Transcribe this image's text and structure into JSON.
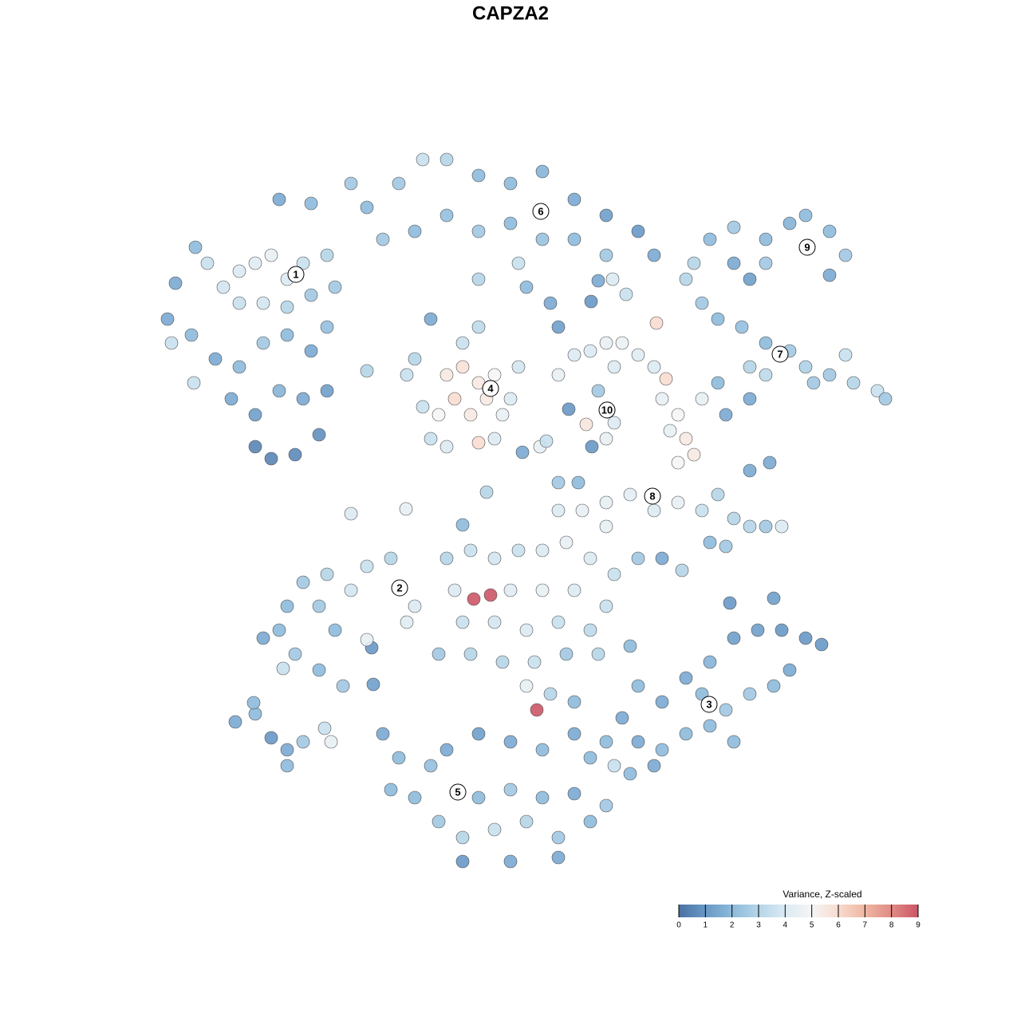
{
  "chart_data": {
    "type": "scatter",
    "title": "CAPZA2",
    "xlim": [
      0,
      1280
    ],
    "ylim": [
      1280,
      0
    ],
    "x": [
      210,
      220,
      245,
      260,
      280,
      300,
      320,
      340,
      360,
      380,
      300,
      330,
      360,
      390,
      410,
      420,
      240,
      270,
      300,
      330,
      360,
      390,
      410,
      290,
      320,
      350,
      380,
      410,
      320,
      340,
      370,
      400,
      350,
      390,
      440,
      215,
      243,
      460,
      460,
      500,
      530,
      560,
      600,
      640,
      680,
      720,
      760,
      800,
      820,
      480,
      520,
      560,
      600,
      640,
      680,
      720,
      760,
      600,
      650,
      690,
      700,
      540,
      660,
      510,
      530,
      540,
      560,
      580,
      600,
      620,
      570,
      590,
      610,
      630,
      550,
      560,
      600,
      620,
      640,
      650,
      520,
      580,
      600,
      740,
      760,
      780,
      800,
      820,
      770,
      750,
      770,
      760,
      735,
      823,
      700,
      720,
      870,
      890,
      920,
      960,
      990,
      1010,
      1040,
      1060,
      1040,
      960,
      920,
      940,
      860,
      880,
      900,
      930,
      960,
      990,
      1010,
      1040,
      1070,
      1100,
      1110,
      1020,
      1060,
      940,
      900,
      910,
      940,
      960,
      830,
      850,
      860,
      870,
      850,
      840,
      835,
      880,
      700,
      730,
      760,
      790,
      820,
      850,
      880,
      900,
      920,
      940,
      960,
      980,
      890,
      910,
      940,
      965,
      760,
      440,
      509,
      580,
      610,
      655,
      677,
      685,
      700,
      725,
      742,
      713,
      741,
      785,
      768,
      750,
      330,
      350,
      360,
      380,
      410,
      440,
      460,
      490,
      500,
      520,
      510,
      400,
      420,
      370,
      400,
      430,
      355,
      466,
      468,
      460,
      560,
      590,
      620,
      650,
      680,
      710,
      740,
      770,
      800,
      830,
      855,
      570,
      640,
      680,
      720,
      760,
      580,
      620,
      660,
      700,
      740,
      550,
      590,
      630,
      670,
      710,
      750,
      790,
      660,
      690,
      720,
      594,
      615,
      673,
      800,
      830,
      860,
      890,
      920,
      950,
      980,
      1010,
      1030,
      970,
      915,
      880,
      910,
      940,
      970,
      990,
      780,
      800,
      830,
      860,
      890,
      920,
      790,
      820,
      770,
      760,
      480,
      500,
      490,
      520,
      540,
      560,
      600,
      640,
      680,
      720,
      740,
      550,
      580,
      620,
      660,
      700,
      740,
      760,
      600,
      640,
      680,
      580,
      640,
      700,
      720,
      295,
      320,
      340,
      360,
      380,
      360,
      407,
      415,
      318
    ],
    "y": [
      400,
      355,
      310,
      330,
      360,
      340,
      330,
      320,
      350,
      330,
      380,
      380,
      385,
      370,
      320,
      360,
      420,
      450,
      460,
      430,
      420,
      440,
      410,
      500,
      520,
      490,
      500,
      490,
      560,
      575,
      570,
      545,
      250,
      255,
      230,
      430,
      480,
      465,
      260,
      230,
      200,
      200,
      220,
      230,
      215,
      250,
      270,
      290,
      320,
      300,
      290,
      270,
      290,
      280,
      300,
      300,
      320,
      350,
      330,
      380,
      410,
      400,
      360,
      470,
      510,
      550,
      470,
      460,
      480,
      470,
      500,
      520,
      500,
      520,
      520,
      560,
      555,
      550,
      500,
      460,
      450,
      430,
      410,
      440,
      430,
      430,
      445,
      460,
      460,
      490,
      530,
      550,
      532,
      405,
      470,
      445,
      330,
      300,
      285,
      300,
      280,
      270,
      290,
      320,
      345,
      330,
      330,
      350,
      350,
      380,
      400,
      410,
      430,
      440,
      460,
      470,
      480,
      490,
      500,
      480,
      445,
      460,
      480,
      520,
      500,
      470,
      500,
      520,
      550,
      570,
      580,
      540,
      475,
      500,
      640,
      640,
      630,
      620,
      640,
      630,
      640,
      620,
      650,
      660,
      660,
      660,
      680,
      685,
      590,
      580,
      660,
      644,
      638,
      658,
      617,
      567,
      560,
      553,
      605,
      605,
      560,
      513,
      378,
      369,
      350,
      352,
      800,
      790,
      760,
      730,
      720,
      740,
      710,
      700,
      737,
      760,
      780,
      760,
      790,
      820,
      840,
      860,
      838,
      812,
      858,
      802,
      700,
      690,
      700,
      690,
      690,
      680,
      700,
      720,
      700,
      700,
      715,
      740,
      740,
      740,
      740,
      760,
      780,
      780,
      790,
      780,
      790,
      820,
      820,
      830,
      830,
      820,
      820,
      810,
      860,
      870,
      880,
      751,
      746,
      890,
      860,
      880,
      850,
      830,
      800,
      790,
      790,
      800,
      808,
      750,
      756,
      870,
      890,
      870,
      860,
      840,
      900,
      930,
      940,
      920,
      910,
      930,
      970,
      960,
      960,
      930,
      920,
      950,
      990,
      1000,
      960,
      940,
      920,
      930,
      940,
      920,
      950,
      1030,
      1050,
      1040,
      1030,
      1050,
      1030,
      1010,
      1000,
      990,
      1000,
      1080,
      1080,
      1075,
      995,
      905,
      895,
      925,
      940,
      930,
      960,
      913,
      930,
      881
    ],
    "values": [
      1.5,
      1.5,
      2,
      3.5,
      3.8,
      4,
      4.2,
      4.5,
      4,
      3.5,
      3.5,
      3.8,
      3,
      2.5,
      3,
      2.5,
      2,
      1.5,
      2,
      2.5,
      2,
      1.5,
      2.2,
      1.5,
      1.2,
      1.8,
      1.5,
      1.2,
      0.5,
      0.5,
      0.6,
      0.8,
      1.5,
      2,
      2.5,
      3.5,
      3.5,
      3,
      2,
      2.5,
      3.5,
      3,
      2,
      2,
      1.8,
      1.5,
      1.2,
      1,
      1.5,
      2.5,
      2,
      2.2,
      2.5,
      2,
      2.3,
      2,
      2.5,
      3,
      3.5,
      1.5,
      1.2,
      1.5,
      2,
      3.5,
      3.5,
      3.5,
      5.5,
      5.8,
      5.5,
      5,
      6,
      5.5,
      5.5,
      4.5,
      5,
      4,
      6,
      4,
      4,
      3.8,
      3,
      3.5,
      3.2,
      4,
      4.5,
      4.6,
      4.2,
      4,
      4,
      2.5,
      4,
      4.5,
      5.6,
      6,
      4.5,
      4,
      3,
      2,
      2.5,
      2,
      1.8,
      2,
      2,
      2.5,
      1.5,
      2.5,
      1.5,
      1.2,
      3,
      2.5,
      2,
      2.2,
      2,
      2.5,
      2.8,
      2.5,
      3,
      3.5,
      2.5,
      2.5,
      3.5,
      3,
      2,
      1.5,
      1.5,
      3.2,
      4.5,
      5,
      5.5,
      5.5,
      5,
      4.5,
      6,
      4.5,
      4,
      4.5,
      4.5,
      4.3,
      4,
      4.5,
      3.5,
      3,
      3,
      3,
      2.5,
      4,
      2,
      2.5,
      1.5,
      1.5,
      4.5,
      4,
      4.5,
      2,
      3,
      1.5,
      4.5,
      3.5,
      2.5,
      2,
      1,
      1,
      1,
      3.5,
      4,
      1.5,
      1.5,
      2,
      2,
      2.5,
      3,
      3.8,
      3.5,
      3,
      4,
      4,
      4.2,
      2.5,
      2,
      2.5,
      2,
      2.5,
      3.5,
      1,
      1.2,
      4.5,
      3,
      3.5,
      3.8,
      3.5,
      4,
      4.5,
      4,
      3.5,
      2.5,
      1.5,
      3,
      4,
      4.2,
      4.5,
      4,
      3.5,
      3.5,
      3.8,
      4,
      3.5,
      3.2,
      2.5,
      3,
      3,
      3.5,
      2.5,
      3,
      2,
      4.5,
      3,
      2,
      9,
      9,
      9,
      2,
      1.5,
      1.5,
      1.8,
      1.2,
      1.2,
      1,
      1,
      1,
      1.2,
      1,
      2,
      2.5,
      2.5,
      2,
      1.5,
      1.5,
      1.5,
      2,
      2,
      2,
      2,
      2,
      1.5,
      3.5,
      2,
      1.5,
      2,
      2,
      2,
      2.2,
      1.5,
      1.2,
      1.5,
      2,
      1.5,
      2,
      2.5,
      3,
      3.5,
      3,
      2.5,
      2,
      2.5,
      2,
      2.5,
      2,
      1,
      1.5,
      1.5,
      1.5,
      1.5,
      2,
      1,
      1.5,
      2.5,
      2,
      3.5,
      4.5,
      2
    ],
    "clusters": [
      {
        "label": "1",
        "x": 371,
        "y": 344
      },
      {
        "label": "6",
        "x": 678,
        "y": 265
      },
      {
        "label": "9",
        "x": 1012,
        "y": 310
      },
      {
        "label": "7",
        "x": 978,
        "y": 444
      },
      {
        "label": "4",
        "x": 615,
        "y": 487
      },
      {
        "label": "10",
        "x": 761,
        "y": 514
      },
      {
        "label": "8",
        "x": 818,
        "y": 622
      },
      {
        "label": "2",
        "x": 501,
        "y": 737
      },
      {
        "label": "3",
        "x": 889,
        "y": 883
      },
      {
        "label": "5",
        "x": 574,
        "y": 993
      }
    ],
    "colorbar": {
      "title": "Variance, Z-scaled",
      "lim": [
        0,
        9
      ],
      "ticks": [
        0,
        1,
        2,
        3,
        4,
        5,
        6,
        7,
        8,
        9
      ],
      "colors": [
        "#4a72a4",
        "#6898c6",
        "#8cbadb",
        "#b5d5e8",
        "#dbeaf3",
        "#f5f5f5",
        "#f8dccf",
        "#efb6a2",
        "#e08b85",
        "#cc5566"
      ]
    }
  }
}
